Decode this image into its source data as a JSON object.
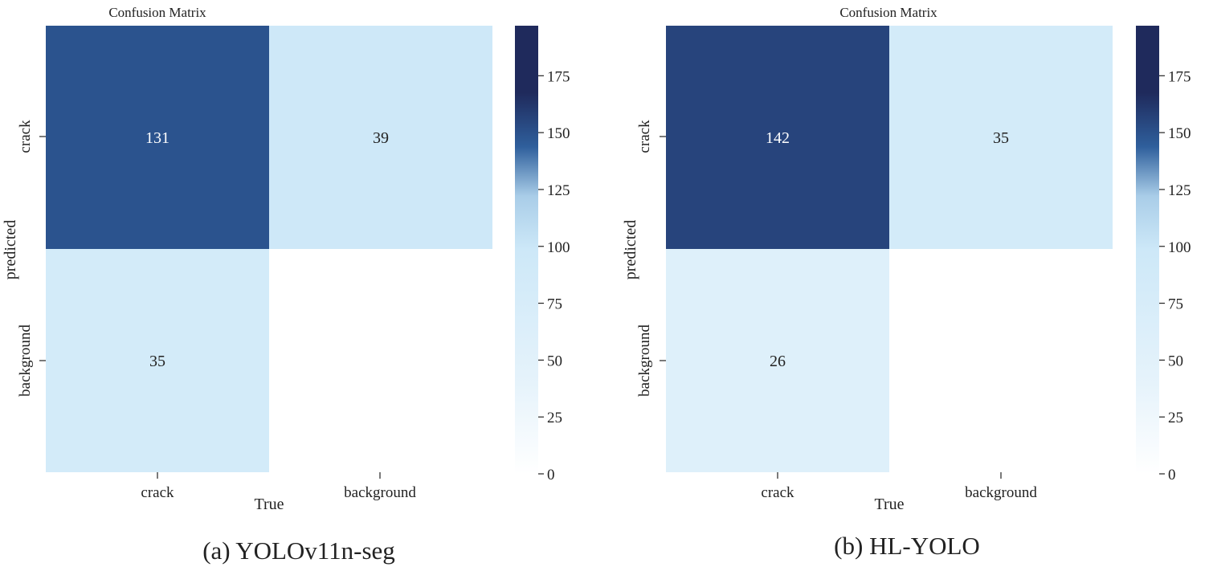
{
  "colors": {
    "scale_low": "#ffffff",
    "scale_mid": "#cde8f8",
    "scale_high": "#1f2a5c",
    "scale_accent": "#2f5f9c",
    "text_dark": "#222222",
    "text_light": "#ffffff"
  },
  "chart_data": [
    {
      "type": "heatmap",
      "title": "Confusion Matrix",
      "xlabel": "True",
      "ylabel": "predicted",
      "x_categories": [
        "crack",
        "background"
      ],
      "y_categories": [
        "crack",
        "background"
      ],
      "matrix": [
        [
          131,
          39
        ],
        [
          35,
          null
        ]
      ],
      "cell_labels": [
        [
          "131",
          "39"
        ],
        [
          "35",
          ""
        ]
      ],
      "colorbar": {
        "min": 0,
        "max": 197,
        "ticks": [
          0,
          25,
          50,
          75,
          100,
          125,
          150,
          175
        ]
      },
      "caption": "(a) YOLOv11n-seg"
    },
    {
      "type": "heatmap",
      "title": "Confusion Matrix",
      "xlabel": "True",
      "ylabel": "predicted",
      "x_categories": [
        "crack",
        "background"
      ],
      "y_categories": [
        "crack",
        "background"
      ],
      "matrix": [
        [
          142,
          35
        ],
        [
          26,
          null
        ]
      ],
      "cell_labels": [
        [
          "142",
          "35"
        ],
        [
          "26",
          ""
        ]
      ],
      "colorbar": {
        "min": 0,
        "max": 197,
        "ticks": [
          0,
          25,
          50,
          75,
          100,
          125,
          150,
          175
        ]
      },
      "caption": "(b) HL-YOLO"
    }
  ]
}
